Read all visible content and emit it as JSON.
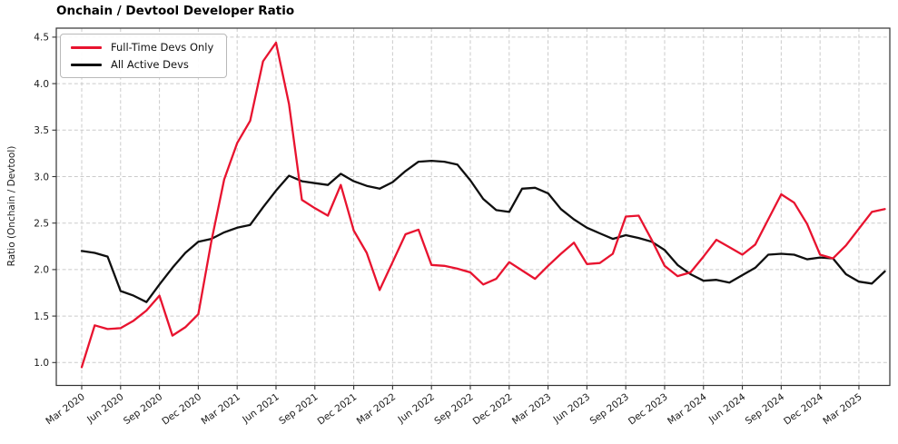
{
  "title": "Onchain / Devtool Developer Ratio",
  "chart_data": {
    "type": "line",
    "title": "Onchain / Devtool Developer Ratio",
    "xlabel": "",
    "ylabel": "Ratio (Onchain / Devtool)",
    "grid": true,
    "legend_position": "upper left",
    "ylim": [
      0.76,
      4.62
    ],
    "y_ticks": [
      1.0,
      1.5,
      2.0,
      2.5,
      3.0,
      3.5,
      4.0,
      4.5
    ],
    "y_tick_labels": [
      "1.0",
      "1.5",
      "2.0",
      "2.5",
      "3.0",
      "3.5",
      "4.0",
      "4.5"
    ],
    "x_tick_labels": [
      "Mar 2020",
      "Jun 2020",
      "Sep 2020",
      "Dec 2020",
      "Mar 2021",
      "Jun 2021",
      "Sep 2021",
      "Dec 2021",
      "Mar 2022",
      "Jun 2022",
      "Sep 2022",
      "Dec 2022",
      "Mar 2023",
      "Jun 2023",
      "Sep 2023",
      "Dec 2023",
      "Mar 2024",
      "Jun 2024",
      "Sep 2024",
      "Dec 2024",
      "Mar 2025"
    ],
    "x_tick_every_months": 3,
    "x": [
      "Mar 2020",
      "Apr 2020",
      "May 2020",
      "Jun 2020",
      "Jul 2020",
      "Aug 2020",
      "Sep 2020",
      "Oct 2020",
      "Nov 2020",
      "Dec 2020",
      "Jan 2021",
      "Feb 2021",
      "Mar 2021",
      "Apr 2021",
      "May 2021",
      "Jun 2021",
      "Jul 2021",
      "Aug 2021",
      "Sep 2021",
      "Oct 2021",
      "Nov 2021",
      "Dec 2021",
      "Jan 2022",
      "Feb 2022",
      "Mar 2022",
      "Apr 2022",
      "May 2022",
      "Jun 2022",
      "Jul 2022",
      "Aug 2022",
      "Sep 2022",
      "Oct 2022",
      "Nov 2022",
      "Dec 2022",
      "Jan 2023",
      "Feb 2023",
      "Mar 2023",
      "Apr 2023",
      "May 2023",
      "Jun 2023",
      "Jul 2023",
      "Aug 2023",
      "Sep 2023",
      "Oct 2023",
      "Nov 2023",
      "Dec 2023",
      "Jan 2024",
      "Feb 2024",
      "Mar 2024",
      "Apr 2024",
      "May 2024",
      "Jun 2024",
      "Jul 2024",
      "Aug 2024",
      "Sep 2024",
      "Oct 2024",
      "Nov 2024",
      "Dec 2024",
      "Jan 2025",
      "Feb 2025",
      "Mar 2025",
      "Apr 2025",
      "May 2025"
    ],
    "series": [
      {
        "name": "Full-Time Devs Only",
        "color": "#e8132f",
        "values": [
          0.95,
          1.4,
          1.36,
          1.37,
          1.45,
          1.56,
          1.72,
          1.29,
          1.38,
          1.52,
          2.3,
          2.97,
          3.36,
          3.6,
          4.24,
          4.44,
          3.78,
          2.75,
          2.66,
          2.58,
          2.91,
          2.42,
          2.18,
          1.78,
          2.08,
          2.38,
          2.43,
          2.05,
          2.04,
          2.01,
          1.97,
          1.84,
          1.9,
          2.08,
          1.99,
          1.9,
          2.04,
          2.17,
          2.29,
          2.06,
          2.07,
          2.17,
          2.57,
          2.58,
          2.32,
          2.04,
          1.93,
          1.97,
          2.14,
          2.32,
          2.24,
          2.16,
          2.27,
          2.54,
          2.81,
          2.72,
          2.49,
          2.16,
          2.12,
          2.26,
          2.44,
          2.62,
          2.65
        ]
      },
      {
        "name": "All Active Devs",
        "color": "#0f0f0f",
        "values": [
          2.2,
          2.18,
          2.14,
          1.77,
          1.72,
          1.65,
          1.84,
          2.02,
          2.18,
          2.3,
          2.33,
          2.4,
          2.45,
          2.48,
          2.67,
          2.85,
          3.01,
          2.95,
          2.93,
          2.91,
          3.03,
          2.95,
          2.9,
          2.87,
          2.94,
          3.06,
          3.16,
          3.17,
          3.16,
          3.13,
          2.96,
          2.76,
          2.64,
          2.62,
          2.87,
          2.88,
          2.82,
          2.65,
          2.54,
          2.45,
          2.39,
          2.33,
          2.37,
          2.34,
          2.3,
          2.21,
          2.05,
          1.95,
          1.88,
          1.89,
          1.86,
          1.94,
          2.02,
          2.16,
          2.17,
          2.16,
          2.11,
          2.13,
          2.12,
          1.95,
          1.87,
          1.85,
          1.98
        ]
      }
    ]
  },
  "legend": {
    "items": [
      {
        "label": "Full-Time Devs Only"
      },
      {
        "label": "All Active Devs"
      }
    ]
  }
}
